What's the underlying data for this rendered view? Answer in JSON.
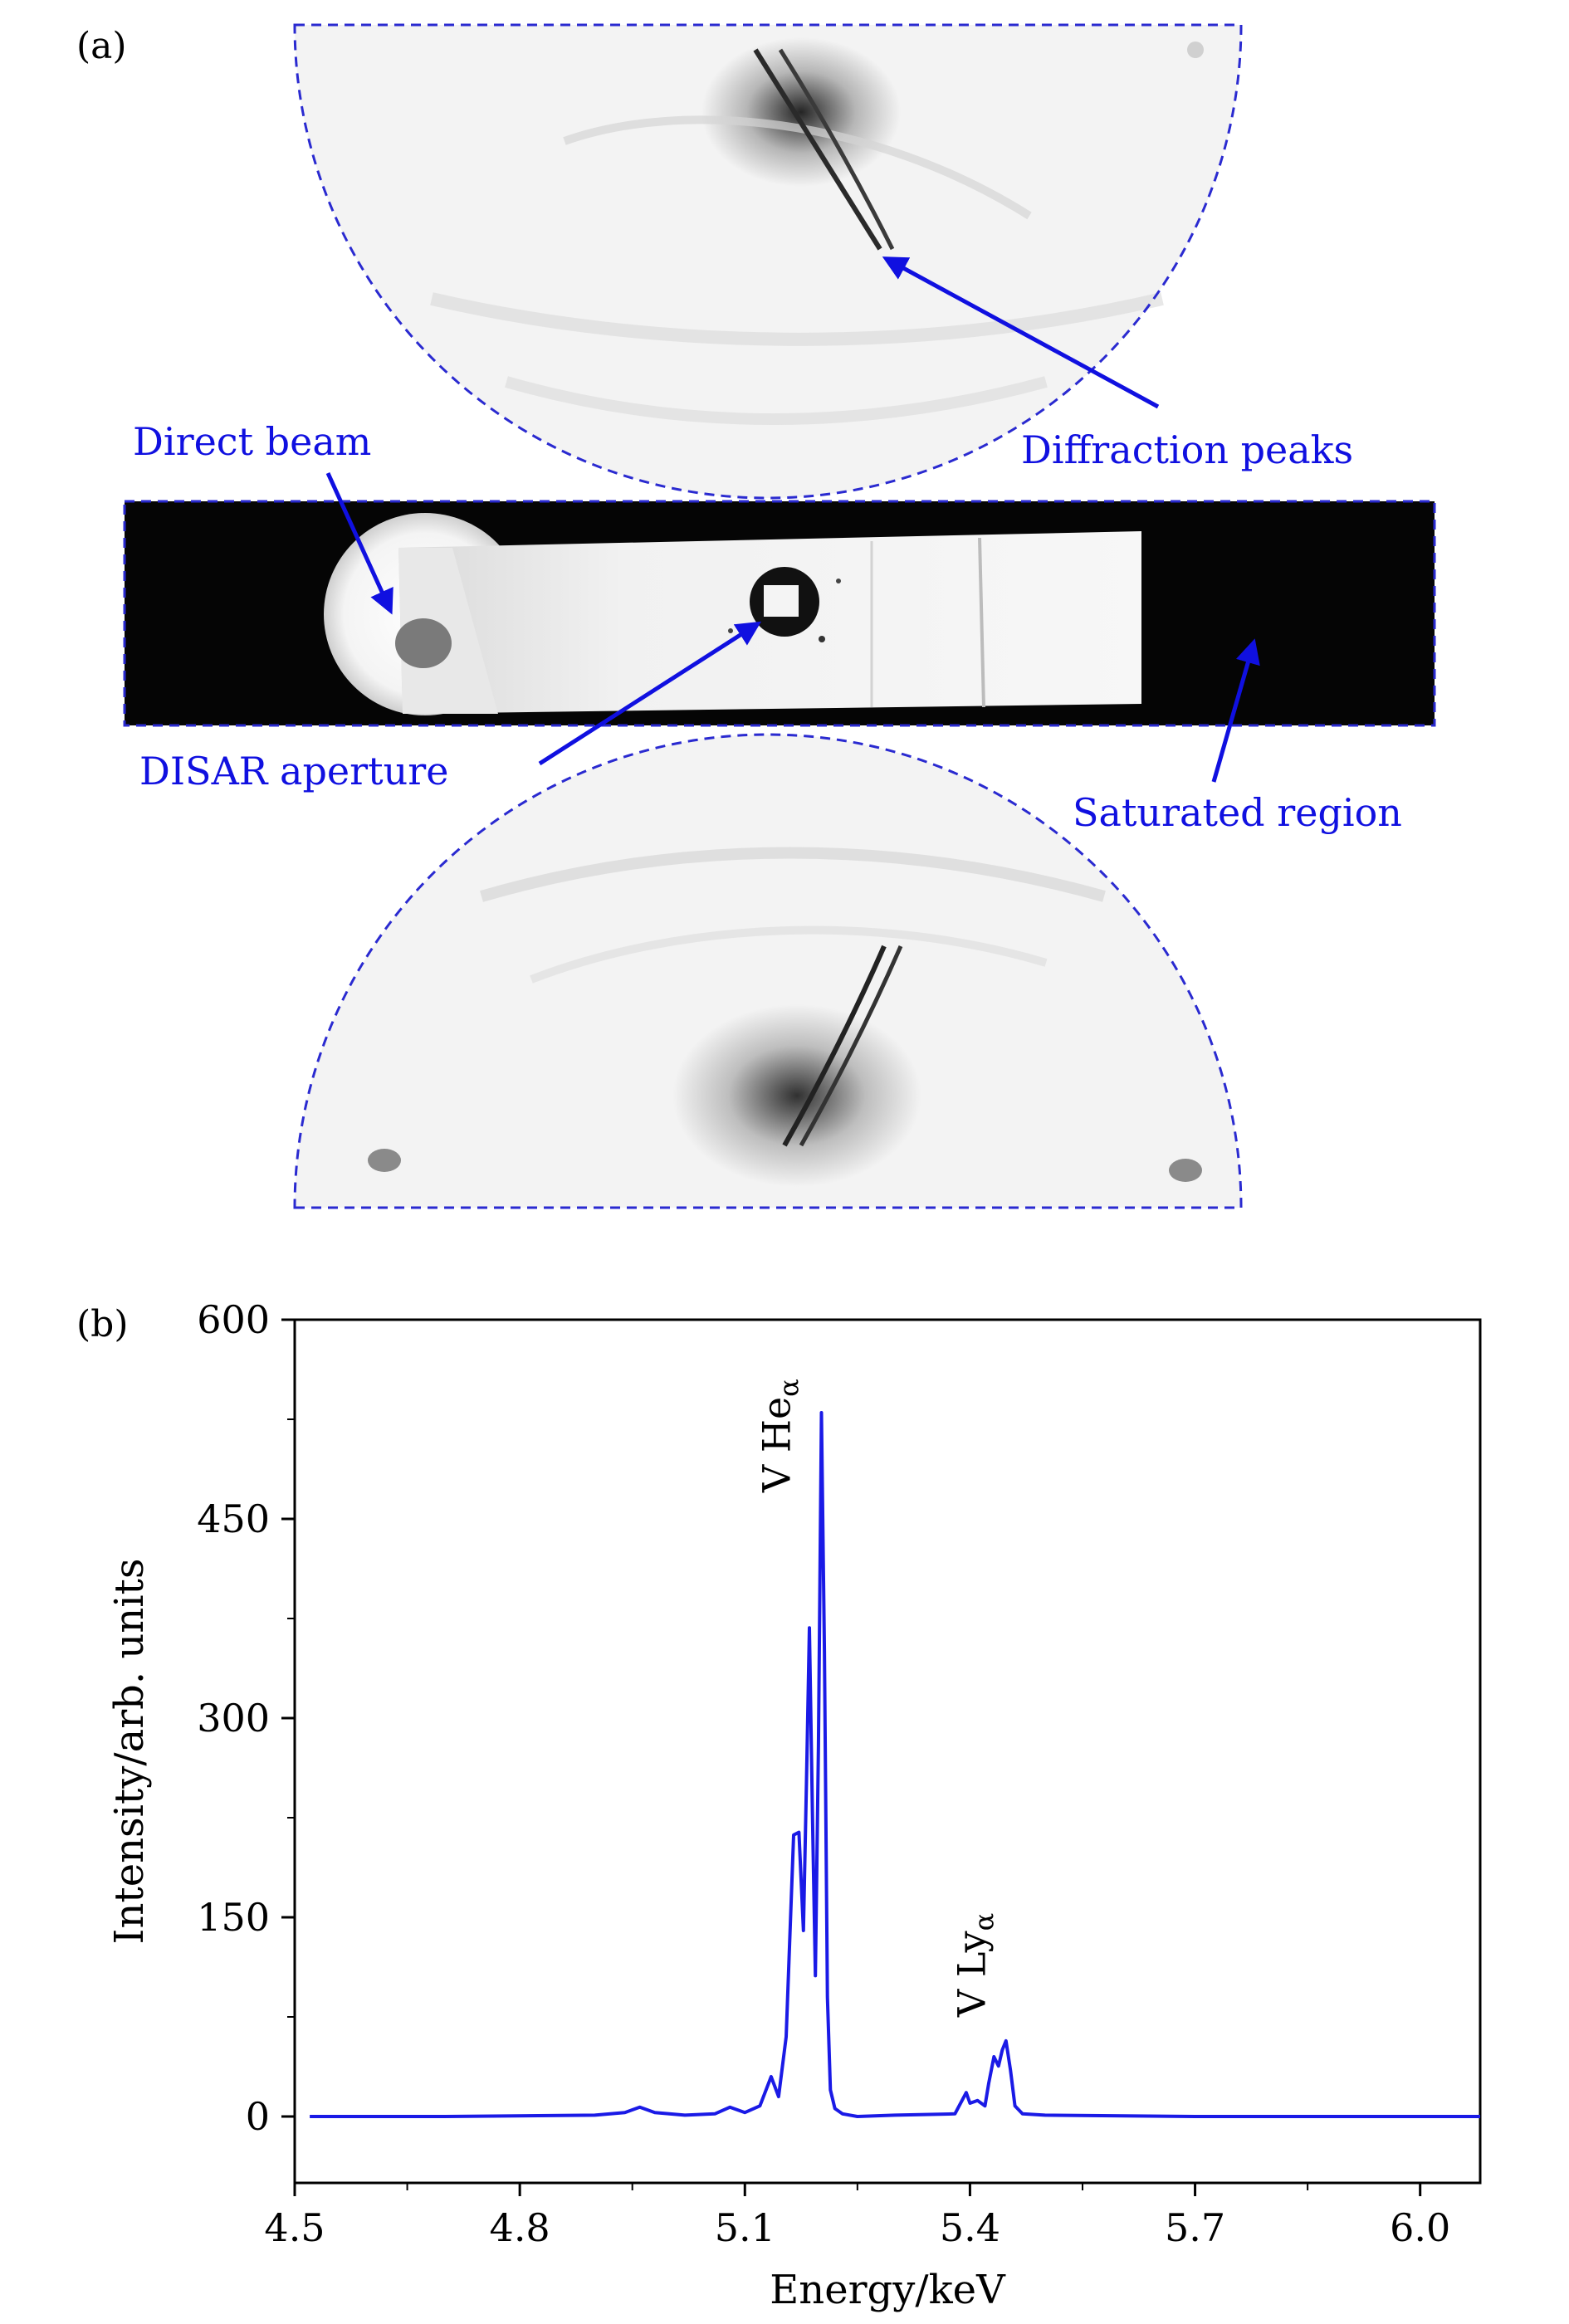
{
  "panel_a": {
    "label": "(a)",
    "annotations": {
      "direct_beam": "Direct beam",
      "diffraction_peaks": "Diffraction peaks",
      "disar_aperture": "DISAR aperture",
      "saturated_region": "Saturated region"
    },
    "colors": {
      "annotation": "#1010e0",
      "outline": "#2a2ad0",
      "saturated": "#050505"
    }
  },
  "panel_b": {
    "label": "(b)"
  },
  "chart_data": {
    "type": "line",
    "xlabel": "Energy/keV",
    "ylabel": "Intensity/arb. units",
    "xlim": [
      4.5,
      6.08
    ],
    "ylim": [
      -50,
      600
    ],
    "xticks": [
      4.5,
      4.8,
      5.1,
      5.4,
      5.7,
      6.0
    ],
    "xtick_labels": [
      "4.5",
      "4.8",
      "5.1",
      "5.4",
      "5.7",
      "6.0"
    ],
    "yticks": [
      0,
      150,
      300,
      450,
      600
    ],
    "ytick_labels": [
      "0",
      "150",
      "300",
      "450",
      "600"
    ],
    "grid": false,
    "color": "#1a1ae6",
    "annotations": [
      {
        "text": "V He",
        "sub": "α",
        "x": 5.16,
        "y": 470
      },
      {
        "text": "V Ly",
        "sub": "α",
        "x": 5.42,
        "y": 75
      }
    ],
    "series": [
      {
        "x": [
          4.52,
          4.7,
          4.9,
          4.94,
          4.96,
          4.98,
          5.02,
          5.06,
          5.08,
          5.1,
          5.12,
          5.135,
          5.145,
          5.155,
          5.165,
          5.172,
          5.178,
          5.182,
          5.186,
          5.19,
          5.194,
          5.198,
          5.202,
          5.206,
          5.21,
          5.214,
          5.22,
          5.23,
          5.25,
          5.3,
          5.38,
          5.395,
          5.4,
          5.41,
          5.42,
          5.425,
          5.432,
          5.438,
          5.443,
          5.448,
          5.454,
          5.46,
          5.47,
          5.5,
          5.7,
          5.9,
          6.08
        ],
        "y": [
          0,
          0,
          1,
          3,
          7,
          3,
          1,
          2,
          7,
          3,
          8,
          30,
          15,
          60,
          212,
          214,
          140,
          250,
          368,
          230,
          106,
          280,
          530,
          350,
          90,
          20,
          6,
          2,
          0,
          1,
          2,
          18,
          10,
          12,
          8,
          25,
          45,
          38,
          50,
          57,
          35,
          8,
          2,
          1,
          0,
          0,
          0
        ]
      }
    ]
  }
}
